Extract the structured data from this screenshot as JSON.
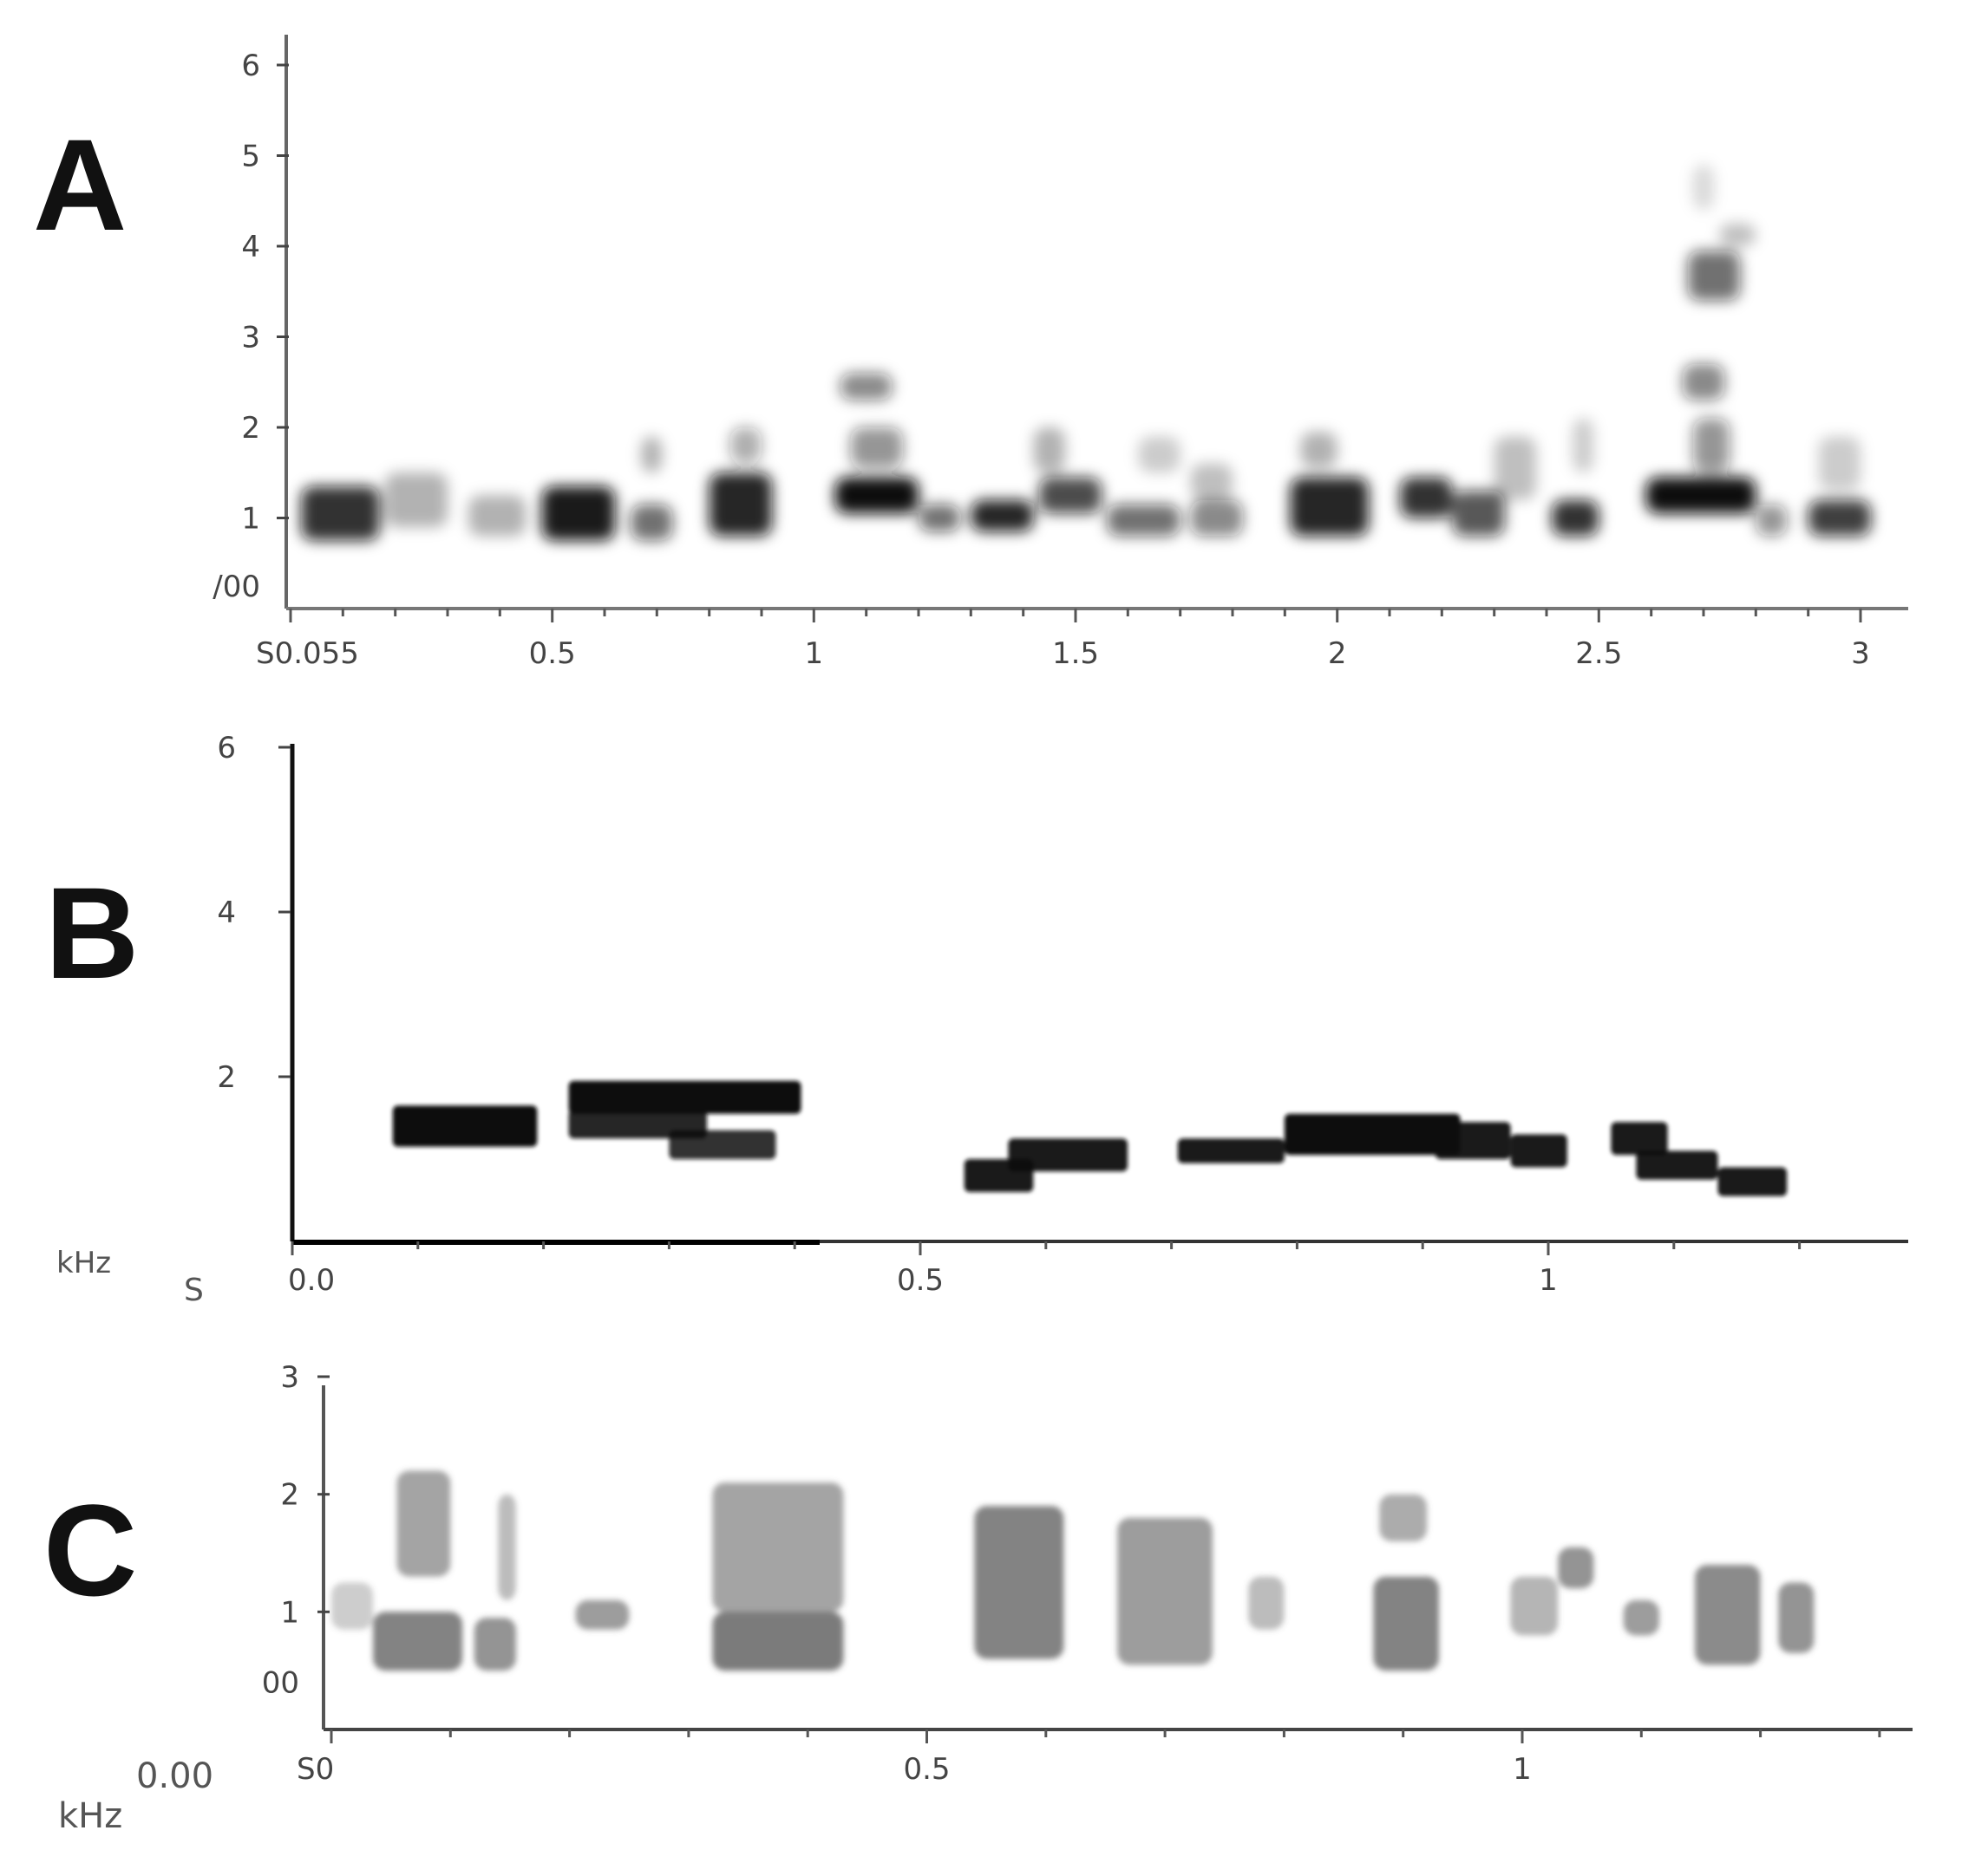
{
  "chart_data": [
    {
      "type": "heatmap",
      "panel_label": "A",
      "x_ticks": [
        "S0.055",
        "0.5",
        "1",
        "1.5",
        "2",
        "2.5",
        "3"
      ],
      "x_tick_values": [
        0.0,
        0.5,
        1,
        1.5,
        2,
        2.5,
        3
      ],
      "y_ticks": [
        "/00",
        "1",
        "2",
        "3",
        "4",
        "5",
        "6"
      ],
      "y_tick_values": [
        0.25,
        1,
        2,
        3,
        4,
        5,
        6
      ],
      "xlim": [
        0.0,
        3.05
      ],
      "ylim": [
        0.0,
        6.3
      ],
      "xlabel": "",
      "ylabel": "",
      "color": "#111111",
      "notes": [
        {
          "t0": 0.02,
          "t1": 0.17,
          "f0": 0.75,
          "f1": 1.35,
          "i": 0.85
        },
        {
          "t0": 0.18,
          "t1": 0.3,
          "f0": 0.9,
          "f1": 1.5,
          "i": 0.3
        },
        {
          "t0": 0.34,
          "t1": 0.45,
          "f0": 0.8,
          "f1": 1.25,
          "i": 0.3
        },
        {
          "t0": 0.48,
          "t1": 0.62,
          "f0": 0.75,
          "f1": 1.35,
          "i": 0.95
        },
        {
          "t0": 0.65,
          "t1": 0.73,
          "f0": 0.75,
          "f1": 1.15,
          "i": 0.6
        },
        {
          "t0": 0.67,
          "t1": 0.71,
          "f0": 1.5,
          "f1": 1.9,
          "i": 0.3
        },
        {
          "t0": 0.8,
          "t1": 0.92,
          "f0": 0.8,
          "f1": 1.5,
          "i": 0.9
        },
        {
          "t0": 0.84,
          "t1": 0.9,
          "f0": 1.6,
          "f1": 2.0,
          "i": 0.35
        },
        {
          "t0": 1.04,
          "t1": 1.2,
          "f0": 1.05,
          "f1": 1.45,
          "i": 1.0
        },
        {
          "t0": 1.05,
          "t1": 1.15,
          "f0": 2.3,
          "f1": 2.6,
          "i": 0.5
        },
        {
          "t0": 1.07,
          "t1": 1.17,
          "f0": 1.55,
          "f1": 2.0,
          "i": 0.45
        },
        {
          "t0": 1.2,
          "t1": 1.28,
          "f0": 0.85,
          "f1": 1.15,
          "i": 0.6
        },
        {
          "t0": 1.3,
          "t1": 1.42,
          "f0": 0.85,
          "f1": 1.2,
          "i": 0.9
        },
        {
          "t0": 1.43,
          "t1": 1.55,
          "f0": 1.05,
          "f1": 1.45,
          "i": 0.75
        },
        {
          "t0": 1.42,
          "t1": 1.48,
          "f0": 1.5,
          "f1": 2.0,
          "i": 0.3
        },
        {
          "t0": 1.56,
          "t1": 1.7,
          "f0": 0.8,
          "f1": 1.15,
          "i": 0.6
        },
        {
          "t0": 1.62,
          "t1": 1.7,
          "f0": 1.5,
          "f1": 1.9,
          "i": 0.2
        },
        {
          "t0": 1.72,
          "t1": 1.82,
          "f0": 0.8,
          "f1": 1.2,
          "i": 0.5
        },
        {
          "t0": 1.72,
          "t1": 1.8,
          "f0": 1.2,
          "f1": 1.6,
          "i": 0.25
        },
        {
          "t0": 1.91,
          "t1": 2.06,
          "f0": 0.8,
          "f1": 1.45,
          "i": 0.9
        },
        {
          "t0": 1.93,
          "t1": 2.0,
          "f0": 1.55,
          "f1": 1.95,
          "i": 0.3
        },
        {
          "t0": 2.12,
          "t1": 2.22,
          "f0": 1.0,
          "f1": 1.45,
          "i": 0.85
        },
        {
          "t0": 2.22,
          "t1": 2.32,
          "f0": 0.8,
          "f1": 1.3,
          "i": 0.7
        },
        {
          "t0": 2.3,
          "t1": 2.38,
          "f0": 1.2,
          "f1": 1.9,
          "i": 0.25
        },
        {
          "t0": 2.41,
          "t1": 2.5,
          "f0": 0.8,
          "f1": 1.2,
          "i": 0.85
        },
        {
          "t0": 2.45,
          "t1": 2.49,
          "f0": 1.5,
          "f1": 2.1,
          "i": 0.2
        },
        {
          "t0": 2.59,
          "t1": 2.8,
          "f0": 1.05,
          "f1": 1.45,
          "i": 1.0
        },
        {
          "t0": 2.67,
          "t1": 2.77,
          "f0": 3.4,
          "f1": 3.95,
          "i": 0.6
        },
        {
          "t0": 2.66,
          "t1": 2.74,
          "f0": 2.3,
          "f1": 2.7,
          "i": 0.5
        },
        {
          "t0": 2.68,
          "t1": 2.75,
          "f0": 1.5,
          "f1": 2.1,
          "i": 0.45
        },
        {
          "t0": 2.73,
          "t1": 2.8,
          "f0": 4.0,
          "f1": 4.25,
          "i": 0.25
        },
        {
          "t0": 2.68,
          "t1": 2.72,
          "f0": 4.4,
          "f1": 4.9,
          "i": 0.15
        },
        {
          "t0": 2.8,
          "t1": 2.86,
          "f0": 0.8,
          "f1": 1.15,
          "i": 0.45
        },
        {
          "t0": 2.9,
          "t1": 3.02,
          "f0": 0.8,
          "f1": 1.2,
          "i": 0.8
        },
        {
          "t0": 2.92,
          "t1": 3.0,
          "f0": 1.3,
          "f1": 1.9,
          "i": 0.2
        }
      ]
    },
    {
      "type": "heatmap",
      "panel_label": "B",
      "x_ticks": [
        "0.0",
        "0.5",
        "1"
      ],
      "x_tick_values": [
        0.0,
        0.5,
        1
      ],
      "y_ticks": [
        "2",
        "4",
        "6"
      ],
      "y_tick_values": [
        2,
        4,
        6
      ],
      "xlim": [
        0.0,
        1.22
      ],
      "ylim": [
        0.0,
        6.0
      ],
      "xlabel": "S",
      "ylabel": "kHz",
      "color": "#111111",
      "notes": [
        {
          "t0": 0.08,
          "t1": 0.195,
          "f0": 1.15,
          "f1": 1.65,
          "i": 1.0
        },
        {
          "t0": 0.22,
          "t1": 0.405,
          "f0": 1.55,
          "f1": 1.95,
          "i": 1.0
        },
        {
          "t0": 0.22,
          "t1": 0.33,
          "f0": 1.25,
          "f1": 1.6,
          "i": 0.9
        },
        {
          "t0": 0.3,
          "t1": 0.385,
          "f0": 1.0,
          "f1": 1.35,
          "i": 0.85
        },
        {
          "t0": 0.535,
          "t1": 0.59,
          "f0": 0.6,
          "f1": 1.0,
          "i": 0.95
        },
        {
          "t0": 0.57,
          "t1": 0.665,
          "f0": 0.85,
          "f1": 1.25,
          "i": 0.95
        },
        {
          "t0": 0.705,
          "t1": 0.79,
          "f0": 0.95,
          "f1": 1.25,
          "i": 0.95
        },
        {
          "t0": 0.79,
          "t1": 0.93,
          "f0": 1.05,
          "f1": 1.55,
          "i": 1.0
        },
        {
          "t0": 0.91,
          "t1": 0.97,
          "f0": 1.0,
          "f1": 1.45,
          "i": 0.95
        },
        {
          "t0": 0.97,
          "t1": 1.015,
          "f0": 0.9,
          "f1": 1.3,
          "i": 0.95
        },
        {
          "t0": 1.05,
          "t1": 1.095,
          "f0": 1.05,
          "f1": 1.45,
          "i": 0.95
        },
        {
          "t0": 1.07,
          "t1": 1.135,
          "f0": 0.75,
          "f1": 1.1,
          "i": 0.95
        },
        {
          "t0": 1.135,
          "t1": 1.19,
          "f0": 0.55,
          "f1": 0.9,
          "i": 0.95
        }
      ]
    },
    {
      "type": "heatmap",
      "panel_label": "C",
      "x_ticks": [
        "S0",
        "0.5",
        "1"
      ],
      "x_tick_values": [
        0.0,
        0.5,
        1
      ],
      "y_ticks": [
        "00",
        "1",
        "2",
        "3"
      ],
      "y_tick_values": [
        0.4,
        1,
        2,
        3
      ],
      "extra_labels": [
        "0.00",
        "kHz"
      ],
      "xlim": [
        0.0,
        1.32
      ],
      "ylim": [
        0.0,
        3.3
      ],
      "xlabel": "",
      "ylabel": "",
      "color": "#5a5a5a",
      "notes": [
        {
          "t0": 0.0,
          "t1": 0.035,
          "f0": 0.85,
          "f1": 1.25,
          "i": 0.3
        },
        {
          "t0": 0.035,
          "t1": 0.11,
          "f0": 0.5,
          "f1": 1.0,
          "i": 0.75
        },
        {
          "t0": 0.055,
          "t1": 0.1,
          "f0": 1.3,
          "f1": 2.2,
          "i": 0.55
        },
        {
          "t0": 0.12,
          "t1": 0.155,
          "f0": 0.5,
          "f1": 0.95,
          "i": 0.65
        },
        {
          "t0": 0.14,
          "t1": 0.155,
          "f0": 1.1,
          "f1": 2.0,
          "i": 0.4
        },
        {
          "t0": 0.205,
          "t1": 0.25,
          "f0": 0.85,
          "f1": 1.1,
          "i": 0.6
        },
        {
          "t0": 0.32,
          "t1": 0.43,
          "f0": 0.5,
          "f1": 1.0,
          "i": 0.8
        },
        {
          "t0": 0.32,
          "t1": 0.43,
          "f0": 1.0,
          "f1": 2.1,
          "i": 0.55
        },
        {
          "t0": 0.54,
          "t1": 0.615,
          "f0": 0.6,
          "f1": 1.9,
          "i": 0.75
        },
        {
          "t0": 0.66,
          "t1": 0.74,
          "f0": 0.55,
          "f1": 1.8,
          "i": 0.6
        },
        {
          "t0": 0.77,
          "t1": 0.8,
          "f0": 0.85,
          "f1": 1.3,
          "i": 0.4
        },
        {
          "t0": 0.875,
          "t1": 0.93,
          "f0": 0.5,
          "f1": 1.3,
          "i": 0.75
        },
        {
          "t0": 0.88,
          "t1": 0.92,
          "f0": 1.6,
          "f1": 2.0,
          "i": 0.5
        },
        {
          "t0": 0.99,
          "t1": 1.03,
          "f0": 0.8,
          "f1": 1.3,
          "i": 0.45
        },
        {
          "t0": 1.03,
          "t1": 1.06,
          "f0": 1.2,
          "f1": 1.55,
          "i": 0.65
        },
        {
          "t0": 1.085,
          "t1": 1.115,
          "f0": 0.8,
          "f1": 1.1,
          "i": 0.6
        },
        {
          "t0": 1.145,
          "t1": 1.2,
          "f0": 0.55,
          "f1": 1.4,
          "i": 0.7
        },
        {
          "t0": 1.215,
          "t1": 1.245,
          "f0": 0.65,
          "f1": 1.25,
          "i": 0.65
        }
      ]
    }
  ]
}
